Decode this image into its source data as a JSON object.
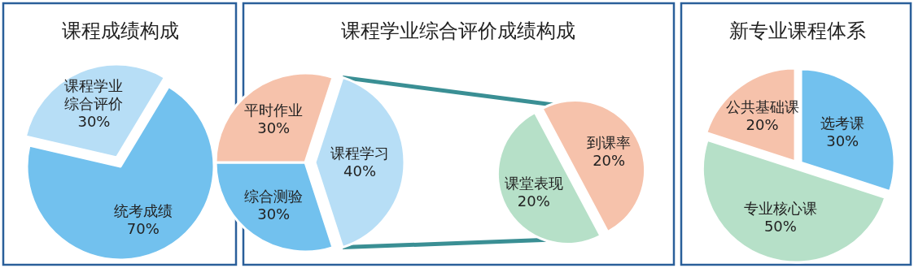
{
  "chart_data": [
    {
      "type": "pie",
      "title": "课程成绩构成",
      "categories": [
        "统考成绩",
        "课程学业综合评价"
      ],
      "values": [
        70,
        30
      ],
      "value_labels": [
        "70%",
        "30%"
      ],
      "colors": [
        "#72c1ee",
        "#b7def6"
      ]
    },
    {
      "type": "pie",
      "title": "课程学业综合评价成绩构成",
      "categories": [
        "课程学习",
        "综合测验",
        "平时作业"
      ],
      "values": [
        40,
        30,
        30
      ],
      "value_labels": [
        "40%",
        "30%",
        "30%"
      ],
      "colors": [
        "#b7def6",
        "#72c1ee",
        "#f6c2ab"
      ]
    },
    {
      "type": "pie",
      "categories": [
        "到课率",
        "课堂表现"
      ],
      "values": [
        20,
        20
      ],
      "value_labels": [
        "20%",
        "20%"
      ],
      "colors": [
        "#f6c2ab",
        "#b6e0c8"
      ]
    },
    {
      "type": "pie",
      "title": "新专业课程体系",
      "categories": [
        "选考课",
        "专业核心课",
        "公共基础课"
      ],
      "values": [
        30,
        50,
        20
      ],
      "value_labels": [
        "30%",
        "50%",
        "20%"
      ],
      "colors": [
        "#72c1ee",
        "#b6e0c8",
        "#f6c2ab"
      ]
    }
  ]
}
